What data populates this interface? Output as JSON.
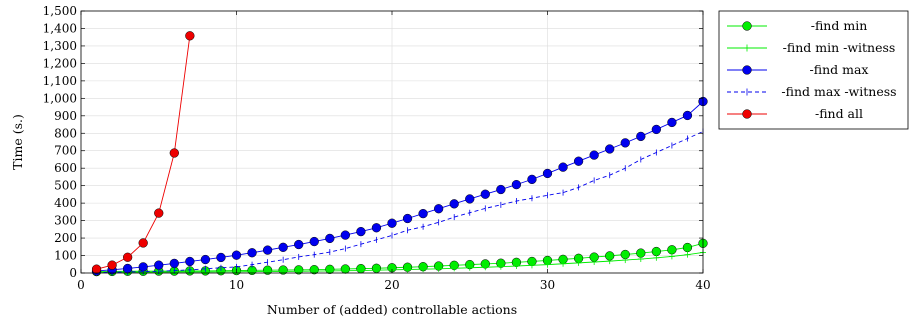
{
  "chart_data": {
    "type": "line",
    "xlabel": "Number of (added) controllable actions",
    "ylabel": "Time (s.)",
    "xlim": [
      0,
      40
    ],
    "ylim": [
      0,
      1500
    ],
    "x_ticks": [
      0,
      10,
      20,
      30,
      40
    ],
    "x_tick_labels": [
      "0",
      "10",
      "20",
      "30",
      "40"
    ],
    "y_ticks": [
      0,
      100,
      200,
      300,
      400,
      500,
      600,
      700,
      800,
      900,
      1000,
      1100,
      1200,
      1300,
      1400,
      1500
    ],
    "y_tick_labels": [
      "0",
      "100",
      "200",
      "300",
      "400",
      "500",
      "600",
      "700",
      "800",
      "900",
      "1,000",
      "1,100",
      "1,200",
      "1,300",
      "1,400",
      "1,500"
    ],
    "grid": true,
    "legend_position": "outside-right-top",
    "series": [
      {
        "name": "-find min",
        "color": "#00ee00",
        "marker": "circle",
        "dashed": false,
        "x": [
          1,
          2,
          3,
          4,
          5,
          6,
          7,
          8,
          9,
          10,
          11,
          12,
          13,
          14,
          15,
          16,
          17,
          18,
          19,
          20,
          21,
          22,
          23,
          24,
          25,
          26,
          27,
          28,
          29,
          30,
          31,
          32,
          33,
          34,
          35,
          36,
          37,
          38,
          39,
          40
        ],
        "y": [
          8,
          9,
          10,
          10,
          11,
          11,
          12,
          12,
          13,
          14,
          15,
          16,
          17,
          18,
          19,
          21,
          23,
          25,
          27,
          30,
          33,
          36,
          40,
          44,
          48,
          52,
          56,
          61,
          66,
          72,
          78,
          84,
          91,
          98,
          106,
          114,
          123,
          133,
          146,
          170
        ]
      },
      {
        "name": "-find min -witness",
        "color": "#00ee00",
        "marker": "plus",
        "dashed": false,
        "x": [
          1,
          2,
          3,
          4,
          5,
          6,
          7,
          8,
          9,
          10,
          11,
          12,
          13,
          14,
          15,
          16,
          17,
          18,
          19,
          20,
          21,
          22,
          23,
          24,
          25,
          26,
          27,
          28,
          29,
          30,
          31,
          32,
          33,
          34,
          35,
          36,
          37,
          38,
          39,
          40
        ],
        "y": [
          4,
          4,
          5,
          5,
          5,
          6,
          6,
          6,
          7,
          7,
          8,
          8,
          9,
          10,
          11,
          12,
          13,
          14,
          16,
          18,
          20,
          22,
          24,
          27,
          30,
          33,
          36,
          40,
          44,
          48,
          53,
          58,
          63,
          68,
          74,
          80,
          87,
          95,
          105,
          118
        ]
      },
      {
        "name": "-find max",
        "color": "#0000ee",
        "marker": "circle",
        "dashed": false,
        "x": [
          1,
          2,
          3,
          4,
          5,
          6,
          7,
          8,
          9,
          10,
          11,
          12,
          13,
          14,
          15,
          16,
          17,
          18,
          19,
          20,
          21,
          22,
          23,
          24,
          25,
          26,
          27,
          28,
          29,
          30,
          31,
          32,
          33,
          34,
          35,
          36,
          37,
          38,
          39,
          40
        ],
        "y": [
          12,
          18,
          26,
          35,
          45,
          55,
          66,
          77,
          89,
          102,
          116,
          131,
          147,
          163,
          180,
          198,
          217,
          237,
          259,
          285,
          312,
          340,
          368,
          396,
          424,
          451,
          478,
          506,
          536,
          570,
          606,
          640,
          675,
          710,
          745,
          782,
          822,
          862,
          902,
          982
        ]
      },
      {
        "name": "-find max -witness",
        "color": "#0000ee",
        "marker": "dash",
        "dashed": true,
        "x": [
          1,
          2,
          3,
          4,
          5,
          6,
          7,
          8,
          9,
          10,
          11,
          12,
          13,
          14,
          15,
          16,
          17,
          18,
          19,
          20,
          21,
          22,
          23,
          24,
          25,
          26,
          27,
          28,
          29,
          30,
          31,
          32,
          33,
          34,
          35,
          36,
          37,
          38,
          39,
          40
        ],
        "y": [
          3,
          4,
          6,
          8,
          10,
          14,
          18,
          24,
          30,
          35,
          48,
          62,
          76,
          92,
          105,
          120,
          140,
          165,
          190,
          215,
          245,
          265,
          290,
          320,
          345,
          370,
          390,
          412,
          428,
          445,
          460,
          490,
          530,
          560,
          600,
          650,
          690,
          730,
          770,
          810
        ]
      },
      {
        "name": "-find all",
        "color": "#ee0000",
        "marker": "circle",
        "dashed": false,
        "x": [
          1,
          2,
          3,
          4,
          5,
          6,
          7
        ],
        "y": [
          22,
          45,
          90,
          172,
          343,
          687,
          1358
        ]
      }
    ]
  }
}
